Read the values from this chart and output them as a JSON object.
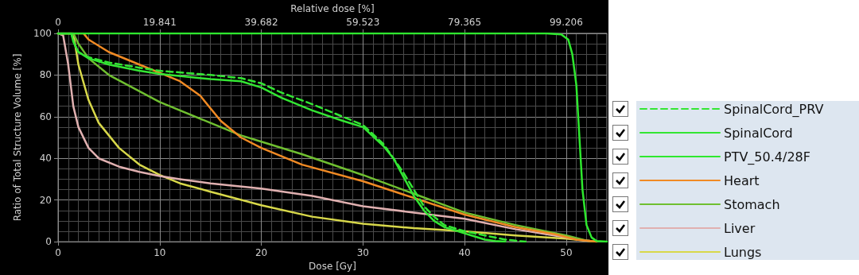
{
  "chart_data": {
    "type": "line",
    "xlabel": "Dose [Gy]",
    "ylabel": "Ratio of Total Structure Volume [%]",
    "x2label": "Relative dose [%]",
    "xlim": [
      0,
      54
    ],
    "xticks": [
      0,
      10,
      20,
      30,
      40,
      50
    ],
    "ylim": [
      0,
      100
    ],
    "yticks": [
      0,
      20,
      40,
      60,
      80,
      100
    ],
    "x2lim": [
      0,
      107.143
    ],
    "x2ticks": [
      0,
      19.841,
      39.682,
      59.523,
      79.365,
      99.206
    ],
    "grid": true,
    "legend": "right",
    "marker": "none",
    "series": [
      {
        "name": "SpinalCord_PRV",
        "color": "#33e633",
        "line_style": "dashed",
        "x": [
          0,
          1.3,
          1.6,
          2,
          3,
          5,
          8,
          10,
          15,
          18,
          20,
          22,
          25,
          28,
          30,
          32,
          34,
          35,
          36,
          37,
          38,
          40,
          42,
          44,
          45,
          46
        ],
        "values": [
          100,
          100,
          95,
          91,
          88.5,
          86,
          83.5,
          82,
          80,
          78.5,
          76,
          71.5,
          66,
          60,
          56,
          47,
          33,
          25,
          17,
          12,
          8,
          5,
          3,
          1,
          0.5,
          0
        ]
      },
      {
        "name": "SpinalCord",
        "color": "#33e633",
        "x": [
          0,
          1.3,
          1.5,
          2,
          3,
          5,
          8,
          10,
          15,
          18,
          20,
          22,
          25,
          28,
          30,
          32,
          33,
          34,
          35,
          36,
          37,
          38,
          39,
          40,
          41,
          42,
          43,
          44
        ],
        "values": [
          100,
          100,
          96,
          91,
          88,
          85,
          82,
          80.5,
          78,
          77,
          74,
          69,
          63,
          58,
          55,
          46,
          40,
          31,
          22,
          15,
          10,
          7,
          5.5,
          4,
          2.5,
          1,
          0.3,
          0
        ]
      },
      {
        "name": "PTV_50.4/28F",
        "color": "#2ee82e",
        "x": [
          0,
          48,
          49.5,
          50.2,
          50.6,
          51,
          51.3,
          51.6,
          52,
          52.5,
          53,
          54
        ],
        "values": [
          100,
          100,
          99.5,
          97,
          90,
          75,
          50,
          25,
          8,
          2,
          0.3,
          0
        ]
      },
      {
        "name": "Heart",
        "color": "#f08a24",
        "x": [
          0,
          2.5,
          3,
          5,
          8,
          10,
          12,
          14,
          16,
          18,
          20,
          22,
          24,
          30,
          35,
          40,
          45,
          49,
          51,
          53
        ],
        "values": [
          100,
          100,
          97,
          91,
          85,
          81,
          77,
          70,
          58,
          50,
          45,
          41,
          37,
          29,
          21,
          13,
          7,
          3.5,
          1,
          0
        ]
      },
      {
        "name": "Stomach",
        "color": "#6fbf30",
        "x": [
          0,
          1.5,
          2,
          3,
          5,
          10,
          15,
          18,
          20,
          24,
          30,
          35,
          40,
          45,
          50,
          52,
          53
        ],
        "values": [
          100,
          100,
          95,
          88,
          80,
          67,
          57,
          51,
          48,
          42,
          32,
          23,
          14,
          8,
          3,
          0.5,
          0
        ]
      },
      {
        "name": "Liver",
        "color": "#e0b0b0",
        "x": [
          0,
          0.5,
          1,
          1.5,
          2,
          3,
          4,
          6,
          8,
          10,
          12,
          15,
          20,
          25,
          30,
          35,
          40,
          45,
          50,
          52,
          53
        ],
        "values": [
          100,
          99,
          85,
          65,
          55,
          45,
          40,
          36,
          33.5,
          31.5,
          30,
          28,
          25.5,
          22,
          17,
          14,
          11,
          6,
          2,
          0.5,
          0
        ]
      },
      {
        "name": "Lungs",
        "color": "#d8d84a",
        "x": [
          0,
          1.5,
          2,
          3,
          4,
          6,
          8,
          10,
          12,
          15,
          20,
          25,
          30,
          35,
          40,
          45,
          50,
          52,
          53
        ],
        "values": [
          100,
          100,
          85,
          68,
          57,
          45,
          37,
          32,
          28,
          24,
          17.5,
          12,
          8.6,
          6.5,
          5,
          3,
          1.5,
          0.5,
          0
        ]
      }
    ]
  }
}
